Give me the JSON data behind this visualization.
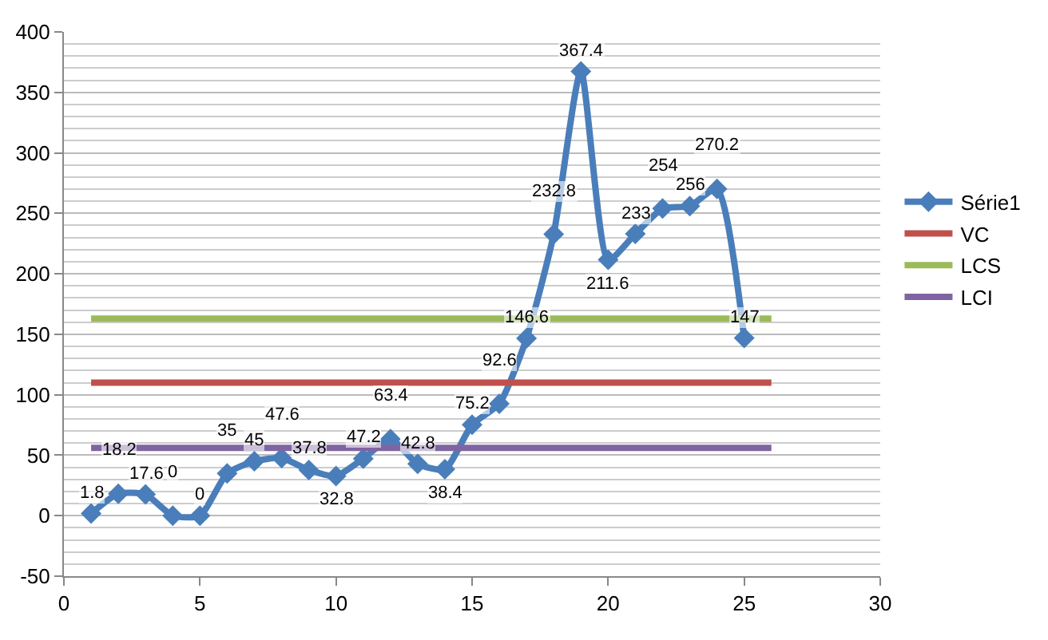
{
  "chart_data": {
    "type": "line",
    "x": [
      1,
      2,
      3,
      4,
      5,
      6,
      7,
      8,
      9,
      10,
      11,
      12,
      13,
      14,
      15,
      16,
      17,
      18,
      19,
      20,
      21,
      22,
      23,
      24,
      25,
      26
    ],
    "series": [
      {
        "name": "Série1",
        "color": "#4a7ebb",
        "marker": "diamond",
        "data_labels": true,
        "values": [
          1.8,
          18.2,
          17.6,
          0,
          0,
          35,
          45,
          47.6,
          37.8,
          32.8,
          47.2,
          63.4,
          42.8,
          38.4,
          75.2,
          92.6,
          146.6,
          232.8,
          367.4,
          211.6,
          233,
          254,
          256,
          270.2,
          147,
          null
        ]
      },
      {
        "name": "VC",
        "color": "#c0504d",
        "marker": "none",
        "values": [
          110,
          110,
          110,
          110,
          110,
          110,
          110,
          110,
          110,
          110,
          110,
          110,
          110,
          110,
          110,
          110,
          110,
          110,
          110,
          110,
          110,
          110,
          110,
          110,
          110,
          110
        ]
      },
      {
        "name": "LCS",
        "color": "#9bbb59",
        "marker": "none",
        "values": [
          163,
          163,
          163,
          163,
          163,
          163,
          163,
          163,
          163,
          163,
          163,
          163,
          163,
          163,
          163,
          163,
          163,
          163,
          163,
          163,
          163,
          163,
          163,
          163,
          163,
          163
        ]
      },
      {
        "name": "LCI",
        "color": "#8064a2",
        "marker": "none",
        "values": [
          56,
          56,
          56,
          56,
          56,
          56,
          56,
          56,
          56,
          56,
          56,
          56,
          56,
          56,
          56,
          56,
          56,
          56,
          56,
          56,
          56,
          56,
          56,
          56,
          56,
          56
        ]
      }
    ],
    "xlim": [
      0,
      30
    ],
    "xticks": [
      0,
      5,
      10,
      15,
      20,
      25,
      30
    ],
    "ylim": [
      -50,
      400
    ],
    "yticks": [
      -50,
      0,
      50,
      100,
      150,
      200,
      250,
      300,
      350,
      400
    ],
    "grid": "y",
    "legend": "right"
  }
}
